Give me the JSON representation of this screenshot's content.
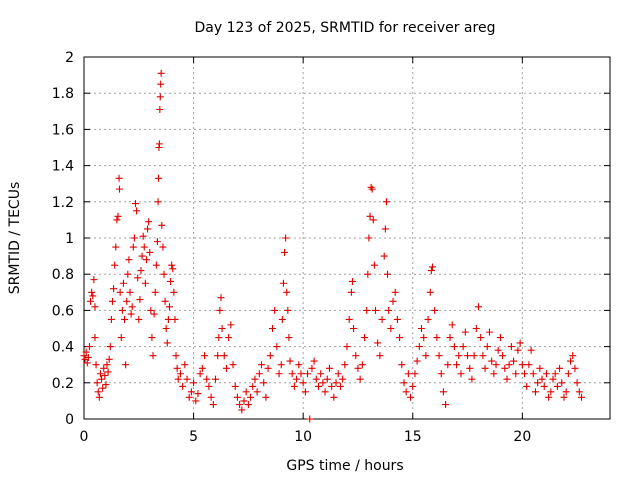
{
  "chart_data": {
    "type": "scatter",
    "title": "Day 123 of 2025, SRMTID for receiver areg",
    "xlabel": "GPS time / hours",
    "ylabel": "SRMTID / TECUs",
    "xlim": [
      0,
      24
    ],
    "ylim": [
      0,
      2
    ],
    "xticks": [
      0,
      5,
      10,
      15,
      20
    ],
    "xtick_labels": [
      "0",
      "5",
      "10",
      "15",
      "20"
    ],
    "yticks": [
      0,
      0.2,
      0.4,
      0.6,
      0.8,
      1,
      1.2,
      1.4,
      1.6,
      1.8,
      2
    ],
    "ytick_labels": [
      "0",
      "0.2",
      "0.4",
      "0.6",
      "0.8",
      "1",
      "1.2",
      "1.4",
      "1.6",
      "1.8",
      "2"
    ],
    "grid": true,
    "marker": "+",
    "marker_color": "#e00000",
    "series": [
      {
        "name": "SRMTID",
        "points": [
          [
            0.0,
            0.35
          ],
          [
            0.05,
            0.33
          ],
          [
            0.1,
            0.37
          ],
          [
            0.15,
            0.31
          ],
          [
            0.2,
            0.34
          ],
          [
            0.25,
            0.4
          ],
          [
            0.3,
            0.65
          ],
          [
            0.35,
            0.7
          ],
          [
            0.4,
            0.68
          ],
          [
            0.45,
            0.77
          ],
          [
            0.5,
            0.62
          ],
          [
            0.5,
            0.45
          ],
          [
            0.55,
            0.3
          ],
          [
            0.6,
            0.2
          ],
          [
            0.65,
            0.15
          ],
          [
            0.7,
            0.12
          ],
          [
            0.75,
            0.25
          ],
          [
            0.8,
            0.22
          ],
          [
            0.85,
            0.17
          ],
          [
            0.9,
            0.28
          ],
          [
            0.95,
            0.24
          ],
          [
            1.0,
            0.19
          ],
          [
            1.05,
            0.3
          ],
          [
            1.1,
            0.26
          ],
          [
            1.15,
            0.33
          ],
          [
            1.2,
            0.4
          ],
          [
            1.25,
            0.55
          ],
          [
            1.3,
            0.65
          ],
          [
            1.35,
            0.72
          ],
          [
            1.4,
            0.85
          ],
          [
            1.45,
            0.95
          ],
          [
            1.5,
            1.1
          ],
          [
            1.55,
            1.12
          ],
          [
            1.6,
            1.33
          ],
          [
            1.62,
            1.27
          ],
          [
            1.65,
            0.7
          ],
          [
            1.7,
            0.45
          ],
          [
            1.75,
            0.6
          ],
          [
            1.8,
            0.75
          ],
          [
            1.85,
            0.55
          ],
          [
            1.9,
            0.3
          ],
          [
            1.95,
            0.65
          ],
          [
            2.0,
            0.8
          ],
          [
            2.05,
            0.88
          ],
          [
            2.1,
            0.7
          ],
          [
            2.15,
            0.58
          ],
          [
            2.2,
            0.62
          ],
          [
            2.25,
            0.95
          ],
          [
            2.3,
            1.0
          ],
          [
            2.35,
            1.19
          ],
          [
            2.4,
            1.15
          ],
          [
            2.45,
            0.78
          ],
          [
            2.5,
            0.55
          ],
          [
            2.55,
            0.66
          ],
          [
            2.6,
            0.82
          ],
          [
            2.65,
            0.9
          ],
          [
            2.7,
            1.01
          ],
          [
            2.75,
            0.95
          ],
          [
            2.8,
            0.75
          ],
          [
            2.85,
            0.88
          ],
          [
            2.9,
            1.05
          ],
          [
            2.95,
            1.09
          ],
          [
            3.0,
            0.92
          ],
          [
            3.05,
            0.6
          ],
          [
            3.1,
            0.45
          ],
          [
            3.15,
            0.35
          ],
          [
            3.2,
            0.58
          ],
          [
            3.25,
            0.7
          ],
          [
            3.3,
            0.85
          ],
          [
            3.35,
            0.98
          ],
          [
            3.38,
            1.2
          ],
          [
            3.4,
            1.33
          ],
          [
            3.42,
            1.5
          ],
          [
            3.44,
            1.52
          ],
          [
            3.46,
            1.71
          ],
          [
            3.48,
            1.78
          ],
          [
            3.5,
            1.85
          ],
          [
            3.52,
            1.91
          ],
          [
            3.55,
            1.07
          ],
          [
            3.6,
            0.95
          ],
          [
            3.65,
            0.8
          ],
          [
            3.7,
            0.65
          ],
          [
            3.75,
            0.5
          ],
          [
            3.8,
            0.42
          ],
          [
            3.85,
            0.55
          ],
          [
            3.9,
            0.62
          ],
          [
            3.95,
            0.76
          ],
          [
            4.0,
            0.85
          ],
          [
            4.05,
            0.83
          ],
          [
            4.1,
            0.7
          ],
          [
            4.15,
            0.55
          ],
          [
            4.2,
            0.35
          ],
          [
            4.25,
            0.28
          ],
          [
            4.3,
            0.22
          ],
          [
            4.4,
            0.25
          ],
          [
            4.5,
            0.18
          ],
          [
            4.6,
            0.3
          ],
          [
            4.7,
            0.22
          ],
          [
            4.8,
            0.12
          ],
          [
            4.9,
            0.15
          ],
          [
            5.0,
            0.2
          ],
          [
            5.1,
            0.1
          ],
          [
            5.2,
            0.14
          ],
          [
            5.3,
            0.25
          ],
          [
            5.4,
            0.28
          ],
          [
            5.5,
            0.35
          ],
          [
            5.6,
            0.22
          ],
          [
            5.7,
            0.18
          ],
          [
            5.8,
            0.12
          ],
          [
            5.9,
            0.08
          ],
          [
            6.0,
            0.22
          ],
          [
            6.1,
            0.35
          ],
          [
            6.15,
            0.45
          ],
          [
            6.2,
            0.6
          ],
          [
            6.25,
            0.67
          ],
          [
            6.3,
            0.5
          ],
          [
            6.4,
            0.35
          ],
          [
            6.5,
            0.28
          ],
          [
            6.6,
            0.45
          ],
          [
            6.7,
            0.52
          ],
          [
            6.8,
            0.3
          ],
          [
            6.9,
            0.18
          ],
          [
            7.0,
            0.12
          ],
          [
            7.1,
            0.08
          ],
          [
            7.2,
            0.05
          ],
          [
            7.3,
            0.1
          ],
          [
            7.4,
            0.15
          ],
          [
            7.5,
            0.08
          ],
          [
            7.6,
            0.12
          ],
          [
            7.7,
            0.18
          ],
          [
            7.8,
            0.22
          ],
          [
            7.9,
            0.15
          ],
          [
            8.0,
            0.25
          ],
          [
            8.1,
            0.3
          ],
          [
            8.2,
            0.2
          ],
          [
            8.3,
            0.12
          ],
          [
            8.4,
            0.28
          ],
          [
            8.5,
            0.35
          ],
          [
            8.6,
            0.5
          ],
          [
            8.7,
            0.6
          ],
          [
            8.8,
            0.4
          ],
          [
            8.9,
            0.25
          ],
          [
            9.0,
            0.3
          ],
          [
            9.05,
            0.55
          ],
          [
            9.1,
            0.75
          ],
          [
            9.15,
            0.92
          ],
          [
            9.2,
            1.0
          ],
          [
            9.25,
            0.7
          ],
          [
            9.3,
            0.6
          ],
          [
            9.35,
            0.45
          ],
          [
            9.4,
            0.32
          ],
          [
            9.5,
            0.25
          ],
          [
            9.6,
            0.18
          ],
          [
            9.7,
            0.22
          ],
          [
            9.8,
            0.3
          ],
          [
            9.9,
            0.25
          ],
          [
            10.0,
            0.2
          ],
          [
            10.1,
            0.15
          ],
          [
            10.2,
            0.25
          ],
          [
            10.3,
            0.0
          ],
          [
            10.4,
            0.28
          ],
          [
            10.5,
            0.32
          ],
          [
            10.6,
            0.22
          ],
          [
            10.7,
            0.18
          ],
          [
            10.8,
            0.25
          ],
          [
            10.9,
            0.2
          ],
          [
            11.0,
            0.15
          ],
          [
            11.1,
            0.22
          ],
          [
            11.2,
            0.28
          ],
          [
            11.3,
            0.18
          ],
          [
            11.4,
            0.12
          ],
          [
            11.5,
            0.2
          ],
          [
            11.6,
            0.25
          ],
          [
            11.7,
            0.18
          ],
          [
            11.8,
            0.22
          ],
          [
            11.9,
            0.3
          ],
          [
            12.0,
            0.4
          ],
          [
            12.1,
            0.55
          ],
          [
            12.2,
            0.7
          ],
          [
            12.25,
            0.76
          ],
          [
            12.3,
            0.5
          ],
          [
            12.4,
            0.35
          ],
          [
            12.5,
            0.28
          ],
          [
            12.6,
            0.22
          ],
          [
            12.7,
            0.3
          ],
          [
            12.8,
            0.45
          ],
          [
            12.9,
            0.6
          ],
          [
            12.95,
            0.8
          ],
          [
            13.0,
            1.0
          ],
          [
            13.05,
            1.12
          ],
          [
            13.1,
            1.28
          ],
          [
            13.15,
            1.27
          ],
          [
            13.2,
            1.1
          ],
          [
            13.25,
            0.85
          ],
          [
            13.3,
            0.6
          ],
          [
            13.4,
            0.42
          ],
          [
            13.5,
            0.35
          ],
          [
            13.6,
            0.55
          ],
          [
            13.7,
            0.9
          ],
          [
            13.75,
            1.05
          ],
          [
            13.8,
            1.2
          ],
          [
            13.85,
            0.8
          ],
          [
            13.9,
            0.6
          ],
          [
            14.0,
            0.5
          ],
          [
            14.1,
            0.65
          ],
          [
            14.2,
            0.7
          ],
          [
            14.3,
            0.55
          ],
          [
            14.4,
            0.45
          ],
          [
            14.5,
            0.3
          ],
          [
            14.6,
            0.2
          ],
          [
            14.7,
            0.15
          ],
          [
            14.8,
            0.25
          ],
          [
            14.9,
            0.12
          ],
          [
            15.0,
            0.18
          ],
          [
            15.1,
            0.25
          ],
          [
            15.2,
            0.32
          ],
          [
            15.3,
            0.4
          ],
          [
            15.4,
            0.5
          ],
          [
            15.5,
            0.45
          ],
          [
            15.6,
            0.35
          ],
          [
            15.7,
            0.55
          ],
          [
            15.8,
            0.7
          ],
          [
            15.85,
            0.82
          ],
          [
            15.9,
            0.84
          ],
          [
            16.0,
            0.6
          ],
          [
            16.1,
            0.45
          ],
          [
            16.2,
            0.35
          ],
          [
            16.3,
            0.25
          ],
          [
            16.4,
            0.15
          ],
          [
            16.5,
            0.08
          ],
          [
            16.6,
            0.3
          ],
          [
            16.7,
            0.45
          ],
          [
            16.8,
            0.52
          ],
          [
            16.9,
            0.4
          ],
          [
            17.0,
            0.3
          ],
          [
            17.1,
            0.35
          ],
          [
            17.2,
            0.25
          ],
          [
            17.3,
            0.4
          ],
          [
            17.4,
            0.48
          ],
          [
            17.5,
            0.35
          ],
          [
            17.6,
            0.28
          ],
          [
            17.7,
            0.22
          ],
          [
            17.8,
            0.35
          ],
          [
            17.9,
            0.5
          ],
          [
            18.0,
            0.62
          ],
          [
            18.1,
            0.45
          ],
          [
            18.2,
            0.35
          ],
          [
            18.3,
            0.28
          ],
          [
            18.4,
            0.4
          ],
          [
            18.5,
            0.48
          ],
          [
            18.6,
            0.32
          ],
          [
            18.7,
            0.25
          ],
          [
            18.8,
            0.3
          ],
          [
            18.9,
            0.38
          ],
          [
            19.0,
            0.45
          ],
          [
            19.1,
            0.35
          ],
          [
            19.2,
            0.28
          ],
          [
            19.3,
            0.22
          ],
          [
            19.4,
            0.3
          ],
          [
            19.5,
            0.4
          ],
          [
            19.6,
            0.32
          ],
          [
            19.7,
            0.25
          ],
          [
            19.8,
            0.38
          ],
          [
            19.9,
            0.42
          ],
          [
            20.0,
            0.3
          ],
          [
            20.1,
            0.25
          ],
          [
            20.2,
            0.18
          ],
          [
            20.3,
            0.3
          ],
          [
            20.4,
            0.38
          ],
          [
            20.5,
            0.25
          ],
          [
            20.6,
            0.15
          ],
          [
            20.7,
            0.2
          ],
          [
            20.8,
            0.28
          ],
          [
            20.9,
            0.22
          ],
          [
            21.0,
            0.18
          ],
          [
            21.1,
            0.25
          ],
          [
            21.2,
            0.12
          ],
          [
            21.3,
            0.15
          ],
          [
            21.4,
            0.22
          ],
          [
            21.5,
            0.25
          ],
          [
            21.6,
            0.18
          ],
          [
            21.7,
            0.28
          ],
          [
            21.8,
            0.2
          ],
          [
            21.9,
            0.12
          ],
          [
            22.0,
            0.15
          ],
          [
            22.1,
            0.25
          ],
          [
            22.2,
            0.32
          ],
          [
            22.3,
            0.35
          ],
          [
            22.4,
            0.28
          ],
          [
            22.5,
            0.2
          ],
          [
            22.6,
            0.15
          ],
          [
            22.7,
            0.12
          ]
        ]
      }
    ]
  }
}
